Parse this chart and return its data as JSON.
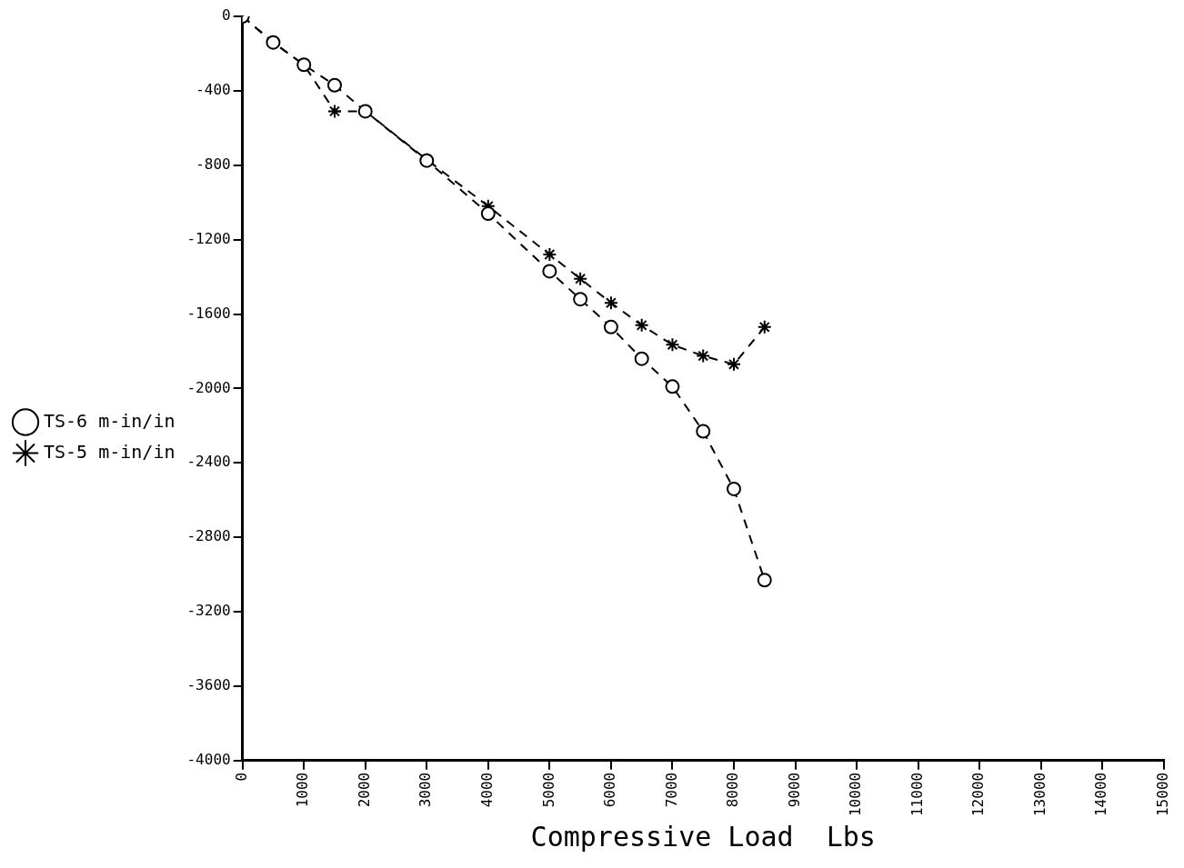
{
  "chart_data": {
    "type": "line",
    "xlabel": "Compressive Load  Lbs",
    "xlim": [
      0,
      15000
    ],
    "xticks": [
      0,
      1000,
      2000,
      3000,
      4000,
      5000,
      6000,
      7000,
      8000,
      9000,
      10000,
      11000,
      12000,
      13000,
      14000,
      15000
    ],
    "ylim": [
      -4000,
      0
    ],
    "yticks": [
      -4000,
      -3600,
      -3200,
      -2800,
      -2400,
      -2000,
      -1600,
      -1200,
      -800,
      -400,
      0
    ],
    "grid": false,
    "legend": "left",
    "line_style": "dashed",
    "series": [
      {
        "name": "TS-6 m-in/in",
        "color": "#000000",
        "marker": "circle",
        "x": [
          0,
          500,
          1000,
          1500,
          2000,
          3000,
          4000,
          5000,
          5500,
          6000,
          6500,
          7000,
          7500,
          8000,
          8500
        ],
        "values": [
          0,
          -140,
          -260,
          -370,
          -510,
          -775,
          -1060,
          -1370,
          -1520,
          -1670,
          -1840,
          -1990,
          -2230,
          -2540,
          -3030
        ]
      },
      {
        "name": "TS-5 m-in/in",
        "color": "#000000",
        "marker": "cross",
        "x": [
          0,
          500,
          1000,
          1500,
          2000,
          3000,
          4000,
          5000,
          5500,
          6000,
          6500,
          7000,
          7500,
          8000,
          8500
        ],
        "values": [
          0,
          -140,
          -260,
          -510,
          -510,
          -770,
          -1020,
          -1280,
          -1410,
          -1540,
          -1660,
          -1765,
          -1825,
          -1870,
          -1670
        ]
      }
    ]
  }
}
